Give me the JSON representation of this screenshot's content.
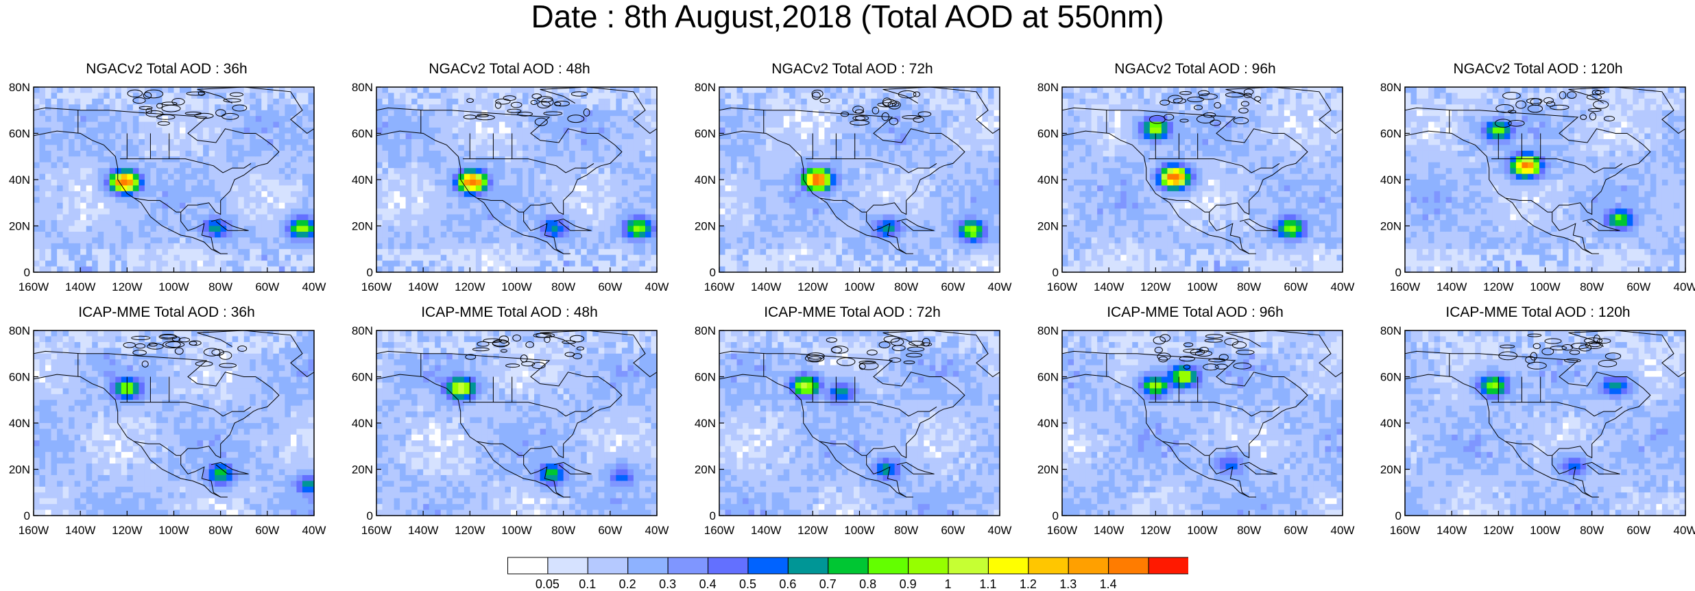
{
  "title": "Date : 8th August,2018 (Total AOD at 550nm)",
  "colorbar": {
    "colors": [
      "#ffffff",
      "#d6e2ff",
      "#b5c9ff",
      "#8eb2ff",
      "#7f96ff",
      "#6370ff",
      "#0063ff",
      "#009696",
      "#00c633",
      "#63ff00",
      "#96ff00",
      "#c6ff33",
      "#ffff00",
      "#ffc600",
      "#ffa000",
      "#ff7c00",
      "#ff1900"
    ],
    "labels": [
      "0.05",
      "0.1",
      "0.2",
      "0.3",
      "0.4",
      "0.5",
      "0.6",
      "0.7",
      "0.8",
      "0.9",
      "1",
      "1.1",
      "1.2",
      "1.3",
      "1.4"
    ]
  },
  "axes": {
    "x_ticks": [
      "160W",
      "140W",
      "120W",
      "100W",
      "80W",
      "60W",
      "40W"
    ],
    "y_ticks": [
      "80N",
      "60N",
      "40N",
      "20N",
      "0"
    ],
    "xlim": [
      -160,
      -40
    ],
    "ylim": [
      0,
      80
    ]
  },
  "chart_data": [
    {
      "type": "heatmap",
      "title": "NGACv2 Total AOD : 36h",
      "hotspots": [
        {
          "lon": -121,
          "lat": 39,
          "aod": 1.4
        },
        {
          "lon": -45,
          "lat": 19,
          "aod": 0.8
        },
        {
          "lon": -82,
          "lat": 19,
          "aod": 0.5
        }
      ]
    },
    {
      "type": "heatmap",
      "title": "NGACv2 Total AOD : 48h",
      "hotspots": [
        {
          "lon": -119,
          "lat": 39,
          "aod": 1.4
        },
        {
          "lon": -48,
          "lat": 19,
          "aod": 0.8
        },
        {
          "lon": -84,
          "lat": 19,
          "aod": 0.5
        }
      ]
    },
    {
      "type": "heatmap",
      "title": "NGACv2 Total AOD : 72h",
      "hotspots": [
        {
          "lon": -118,
          "lat": 40,
          "aod": 1.4
        },
        {
          "lon": -52,
          "lat": 18,
          "aod": 0.8
        },
        {
          "lon": -88,
          "lat": 19,
          "aod": 0.5
        }
      ]
    },
    {
      "type": "heatmap",
      "title": "NGACv2 Total AOD : 96h",
      "hotspots": [
        {
          "lon": -112,
          "lat": 41,
          "aod": 1.4
        },
        {
          "lon": -62,
          "lat": 19,
          "aod": 0.8
        },
        {
          "lon": -120,
          "lat": 62,
          "aod": 0.8
        }
      ]
    },
    {
      "type": "heatmap",
      "title": "NGACv2 Total AOD : 120h",
      "hotspots": [
        {
          "lon": -108,
          "lat": 46,
          "aod": 1.3
        },
        {
          "lon": -68,
          "lat": 23,
          "aod": 0.7
        },
        {
          "lon": -120,
          "lat": 61,
          "aod": 0.7
        }
      ]
    },
    {
      "type": "heatmap",
      "title": "ICAP-MME Total AOD : 36h",
      "hotspots": [
        {
          "lon": -120,
          "lat": 55,
          "aod": 0.8
        },
        {
          "lon": -80,
          "lat": 18,
          "aod": 0.6
        },
        {
          "lon": -42,
          "lat": 13,
          "aod": 0.5
        }
      ]
    },
    {
      "type": "heatmap",
      "title": "ICAP-MME Total AOD : 48h",
      "hotspots": [
        {
          "lon": -124,
          "lat": 55,
          "aod": 1.0
        },
        {
          "lon": -85,
          "lat": 18,
          "aod": 0.6
        },
        {
          "lon": -55,
          "lat": 17,
          "aod": 0.4
        }
      ]
    },
    {
      "type": "heatmap",
      "title": "ICAP-MME Total AOD : 72h",
      "hotspots": [
        {
          "lon": -123,
          "lat": 56,
          "aod": 0.9
        },
        {
          "lon": -88,
          "lat": 20,
          "aod": 0.5
        },
        {
          "lon": -108,
          "lat": 53,
          "aod": 0.5
        }
      ]
    },
    {
      "type": "heatmap",
      "title": "ICAP-MME Total AOD : 96h",
      "hotspots": [
        {
          "lon": -108,
          "lat": 60,
          "aod": 0.9
        },
        {
          "lon": -120,
          "lat": 56,
          "aod": 0.8
        },
        {
          "lon": -88,
          "lat": 22,
          "aod": 0.4
        }
      ]
    },
    {
      "type": "heatmap",
      "title": "ICAP-MME Total AOD : 120h",
      "hotspots": [
        {
          "lon": -122,
          "lat": 56,
          "aod": 0.8
        },
        {
          "lon": -70,
          "lat": 56,
          "aod": 0.5
        },
        {
          "lon": -88,
          "lat": 21,
          "aod": 0.4
        }
      ]
    }
  ]
}
